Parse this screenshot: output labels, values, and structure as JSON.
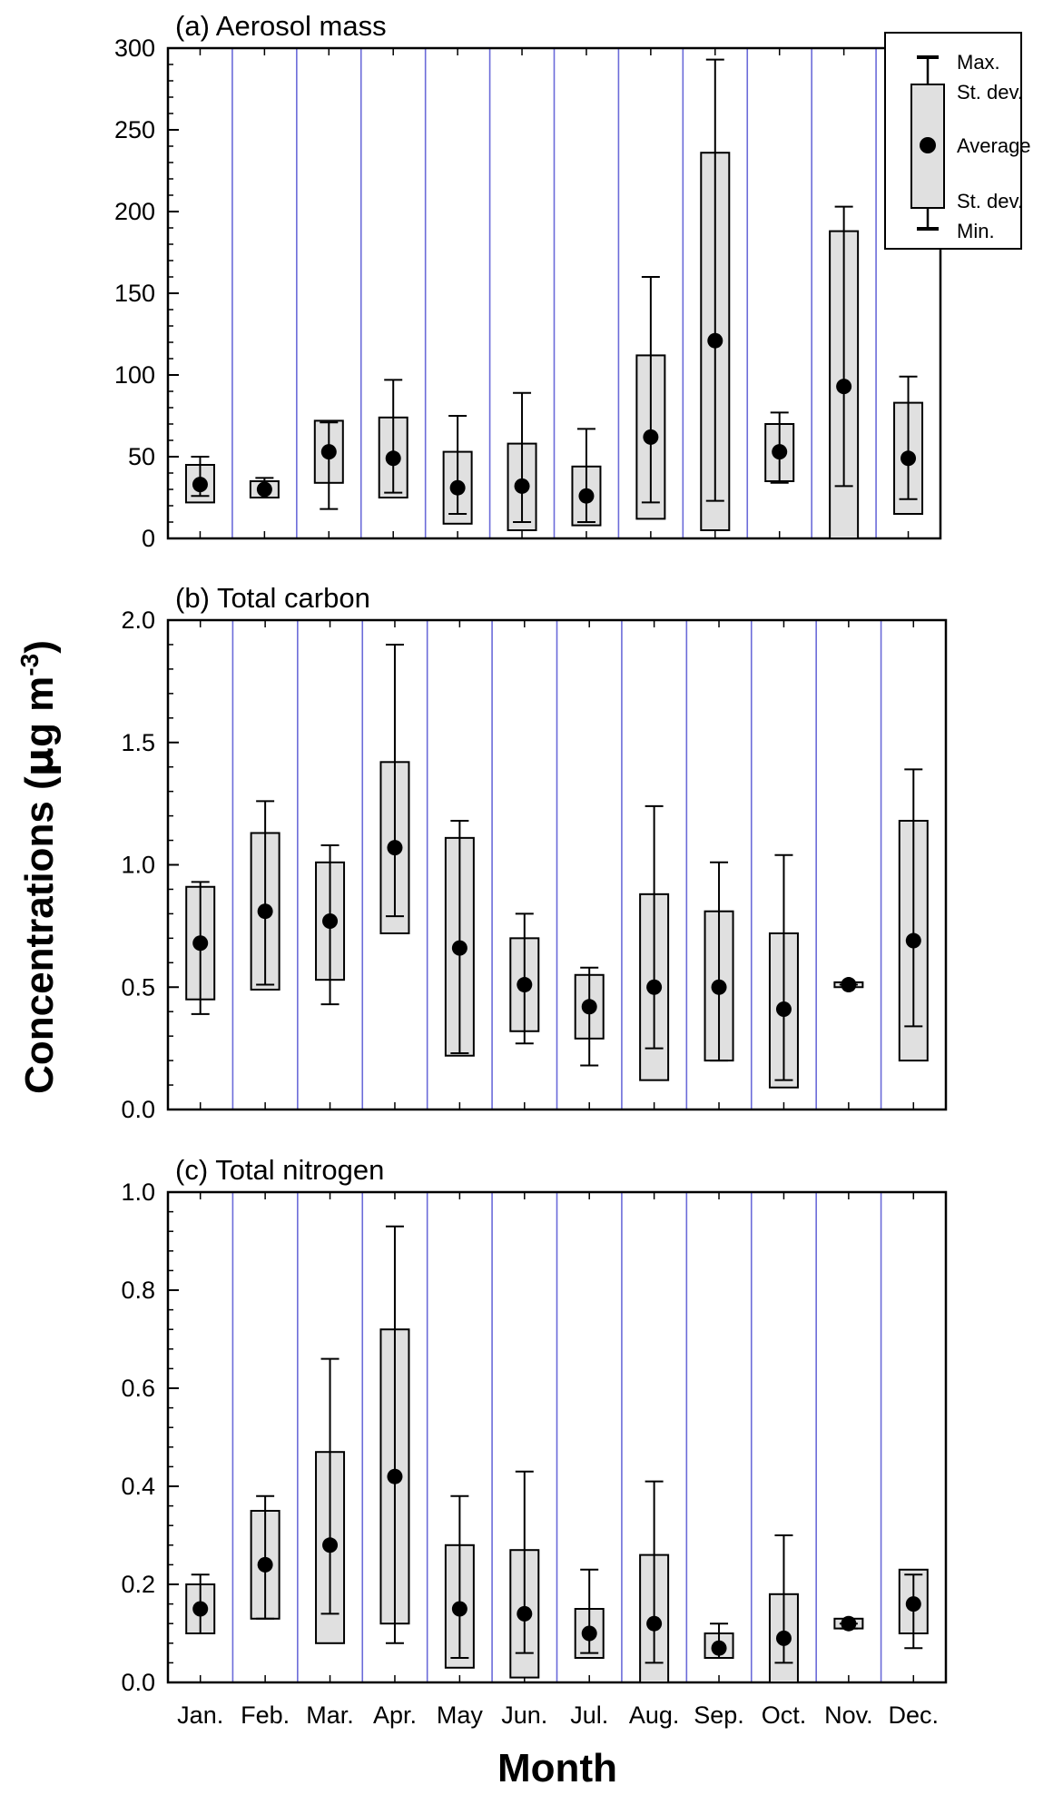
{
  "figure": {
    "ylabel_main": "Concentrations (",
    "ylabel_mu": "μ",
    "ylabel_unit": "g m",
    "ylabel_exp": "-3",
    "ylabel_close": ")",
    "xlabel": "Month"
  },
  "legend": {
    "max": "Max.",
    "sd_upper": "St. dev.",
    "average": "Average",
    "sd_lower": "St. dev.",
    "min": "Min."
  },
  "colors": {
    "box_fill": "#e0e0e0",
    "divider": "#6b6bd9",
    "ink": "#000000"
  },
  "chart_data": [
    {
      "type": "box",
      "title": "(a) Aerosol mass",
      "categories": [
        "Jan.",
        "Feb.",
        "Mar.",
        "Apr.",
        "May",
        "Jun.",
        "Jul.",
        "Aug.",
        "Sep.",
        "Oct.",
        "Nov.",
        "Dec."
      ],
      "ylim": [
        0,
        300
      ],
      "yticks": [
        0,
        50,
        100,
        150,
        200,
        250,
        300
      ],
      "ytick_labels": [
        "0",
        "50",
        "100",
        "150",
        "200",
        "250",
        "300"
      ],
      "series": [
        {
          "stat": "max",
          "values": [
            50,
            37,
            71,
            97,
            75,
            89,
            67,
            160,
            293,
            77,
            203,
            99
          ]
        },
        {
          "stat": "sd_upper",
          "values": [
            45,
            35,
            72,
            74,
            53,
            58,
            44,
            112,
            236,
            70,
            188,
            83
          ]
        },
        {
          "stat": "average",
          "values": [
            33,
            30,
            53,
            49,
            31,
            32,
            26,
            62,
            121,
            53,
            93,
            49
          ]
        },
        {
          "stat": "sd_lower",
          "values": [
            22,
            25,
            34,
            25,
            9,
            5,
            8,
            12,
            5,
            35,
            0,
            15
          ]
        },
        {
          "stat": "min",
          "values": [
            26,
            25,
            18,
            28,
            15,
            10,
            10,
            22,
            23,
            34,
            32,
            24
          ]
        }
      ]
    },
    {
      "type": "box",
      "title": "(b) Total carbon",
      "categories": [
        "Jan.",
        "Feb.",
        "Mar.",
        "Apr.",
        "May",
        "Jun.",
        "Jul.",
        "Aug.",
        "Sep.",
        "Oct.",
        "Nov.",
        "Dec."
      ],
      "ylim": [
        0,
        2.0
      ],
      "yticks": [
        0,
        0.5,
        1.0,
        1.5,
        2.0
      ],
      "ytick_labels": [
        "0.0",
        "0.5",
        "1.0",
        "1.5",
        "2.0"
      ],
      "series": [
        {
          "stat": "max",
          "values": [
            0.93,
            1.26,
            1.08,
            1.9,
            1.18,
            0.8,
            0.58,
            1.24,
            1.01,
            1.04,
            0.51,
            1.39
          ]
        },
        {
          "stat": "sd_upper",
          "values": [
            0.91,
            1.13,
            1.01,
            1.42,
            1.11,
            0.7,
            0.55,
            0.88,
            0.81,
            0.72,
            0.52,
            1.18
          ]
        },
        {
          "stat": "average",
          "values": [
            0.68,
            0.81,
            0.77,
            1.07,
            0.66,
            0.51,
            0.42,
            0.5,
            0.5,
            0.41,
            0.51,
            0.69
          ]
        },
        {
          "stat": "sd_lower",
          "values": [
            0.45,
            0.49,
            0.53,
            0.72,
            0.22,
            0.32,
            0.29,
            0.12,
            0.2,
            0.09,
            0.5,
            0.2
          ]
        },
        {
          "stat": "min",
          "values": [
            0.39,
            0.51,
            0.43,
            0.79,
            0.23,
            0.27,
            0.18,
            0.25,
            0.2,
            0.12,
            0.51,
            0.34
          ]
        }
      ]
    },
    {
      "type": "box",
      "title": "(c) Total nitrogen",
      "categories": [
        "Jan.",
        "Feb.",
        "Mar.",
        "Apr.",
        "May",
        "Jun.",
        "Jul.",
        "Aug.",
        "Sep.",
        "Oct.",
        "Nov.",
        "Dec."
      ],
      "ylim": [
        0,
        1.0
      ],
      "yticks": [
        0,
        0.2,
        0.4,
        0.6,
        0.8,
        1.0
      ],
      "ytick_labels": [
        "0.0",
        "0.2",
        "0.4",
        "0.6",
        "0.8",
        "1.0"
      ],
      "series": [
        {
          "stat": "max",
          "values": [
            0.22,
            0.38,
            0.66,
            0.93,
            0.38,
            0.43,
            0.23,
            0.41,
            0.12,
            0.3,
            0.12,
            0.22
          ]
        },
        {
          "stat": "sd_upper",
          "values": [
            0.2,
            0.35,
            0.47,
            0.72,
            0.28,
            0.27,
            0.15,
            0.26,
            0.1,
            0.18,
            0.13,
            0.23
          ]
        },
        {
          "stat": "average",
          "values": [
            0.15,
            0.24,
            0.28,
            0.42,
            0.15,
            0.14,
            0.1,
            0.12,
            0.07,
            0.09,
            0.12,
            0.16
          ]
        },
        {
          "stat": "sd_lower",
          "values": [
            0.1,
            0.13,
            0.08,
            0.12,
            0.03,
            0.01,
            0.05,
            0.0,
            0.05,
            0.0,
            0.11,
            0.1
          ]
        },
        {
          "stat": "min",
          "values": [
            0.1,
            0.13,
            0.14,
            0.08,
            0.05,
            0.06,
            0.06,
            0.04,
            0.05,
            0.04,
            0.11,
            0.07
          ]
        }
      ]
    }
  ]
}
